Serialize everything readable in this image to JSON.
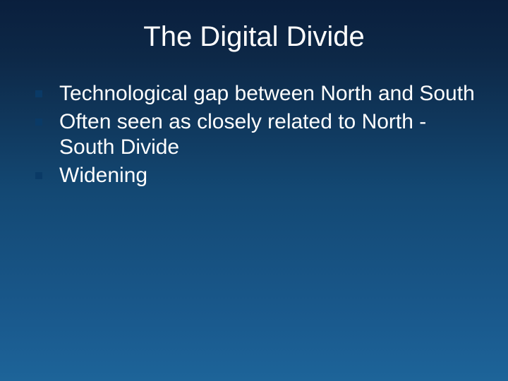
{
  "slide": {
    "title": "The Digital Divide",
    "title_fontsize": 40,
    "title_color": "#ffffff",
    "background_gradient_top": "#0a1f3d",
    "background_gradient_bottom": "#1d6499",
    "body_font": "Verdana",
    "body_fontsize": 30,
    "body_color": "#ffffff",
    "bullet_marker_color": "#0a3a66",
    "bullet_marker_size": 10,
    "bullets": [
      "Technological gap between North and South",
      "Often seen as closely related to North -South Divide",
      "Widening"
    ]
  }
}
